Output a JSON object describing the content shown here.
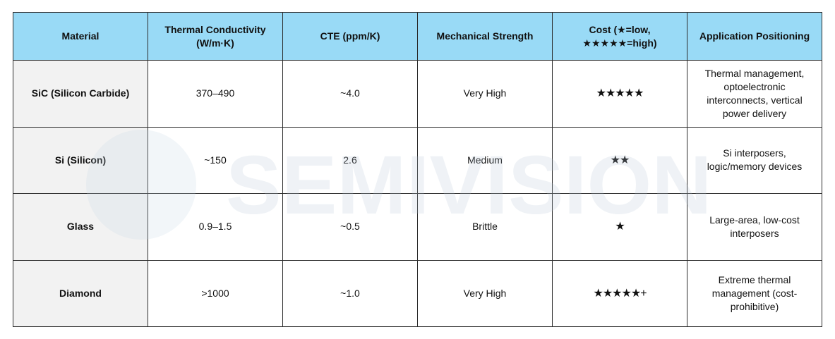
{
  "table": {
    "header": [
      "Material",
      "Thermal Conductivity (W/m·K)",
      "CTE (ppm/K)",
      "Mechanical Strength",
      "Cost (★=low, ★★★★★=high)",
      "Application Positioning"
    ],
    "rows": [
      [
        "SiC (Silicon Carbide)",
        "370–490",
        "~4.0",
        "Very High",
        "★★★★★",
        "Thermal management, optoelectronic interconnects, vertical power delivery"
      ],
      [
        "Si (Silicon)",
        "~150",
        "2.6",
        "Medium",
        "★★",
        "Si interposers, logic/memory devices"
      ],
      [
        "Glass",
        "0.9–1.5",
        "~0.5",
        "Brittle",
        "★",
        "Large-area, low-cost interposers"
      ],
      [
        "Diamond",
        ">1000",
        "~1.0",
        "Very High",
        "★★★★★+",
        "Extreme thermal management (cost-prohibitive)"
      ]
    ]
  },
  "watermark": "SEMIVISION"
}
